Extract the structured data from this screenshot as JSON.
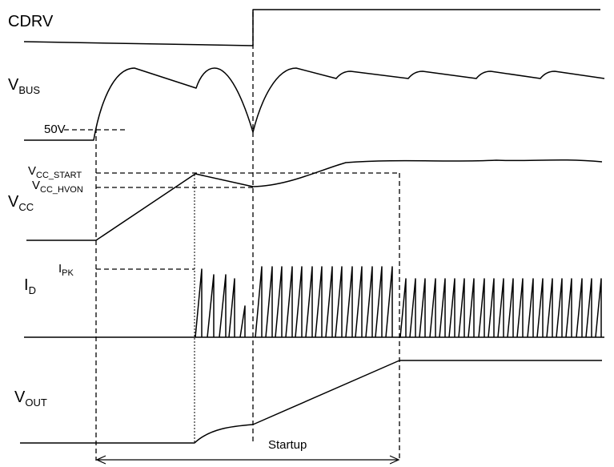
{
  "signals": {
    "cdrv": {
      "main": "CDRV",
      "sub": ""
    },
    "vbus": {
      "main": "V",
      "sub": "BUS"
    },
    "vcc": {
      "main": "V",
      "sub": "CC"
    },
    "id": {
      "main": "I",
      "sub": "D"
    },
    "vout": {
      "main": "V",
      "sub": "OUT"
    }
  },
  "annotations": {
    "v50": "50V",
    "vcc_start": {
      "main": "V",
      "sub": "CC_START"
    },
    "vcc_hvon": {
      "main": "V",
      "sub": "CC_HVON"
    },
    "ipk": {
      "main": "I",
      "sub": "PK"
    },
    "startup": "Startup"
  }
}
